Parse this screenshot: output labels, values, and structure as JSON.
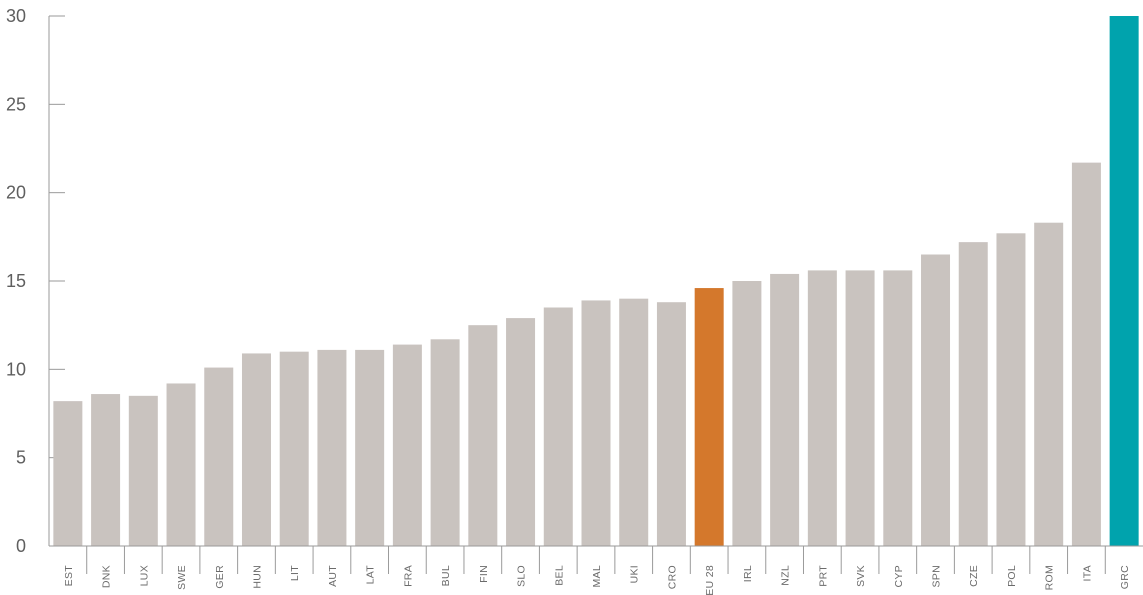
{
  "chart_data": {
    "type": "bar",
    "categories": [
      "EST",
      "DNK",
      "LUX",
      "SWE",
      "GER",
      "HUN",
      "LIT",
      "AUT",
      "LAT",
      "FRA",
      "BUL",
      "FIN",
      "SLO",
      "BEL",
      "MAL",
      "UKI",
      "CRO",
      "EU 28",
      "IRL",
      "NZL",
      "PRT",
      "SVK",
      "CYP",
      "SPN",
      "CZE",
      "POL",
      "ROM",
      "ITA",
      "GRC"
    ],
    "values": [
      8.2,
      8.6,
      8.5,
      9.2,
      10.1,
      10.9,
      11.0,
      11.1,
      11.1,
      11.4,
      11.7,
      12.5,
      12.9,
      13.5,
      13.9,
      14.0,
      13.8,
      14.6,
      15.0,
      15.4,
      15.6,
      15.6,
      15.6,
      16.5,
      17.2,
      17.7,
      18.3,
      21.7,
      30
    ],
    "highlight": {
      "EU 28": "#d4782c",
      "GRC": "#00a3ad"
    },
    "default_color": "#c9c3bf",
    "ylim": [
      0,
      30
    ],
    "yticks": [
      0,
      5,
      10,
      15,
      20,
      25,
      30
    ],
    "title": "",
    "xlabel": "",
    "ylabel": "",
    "grid": false,
    "legend": "none"
  }
}
